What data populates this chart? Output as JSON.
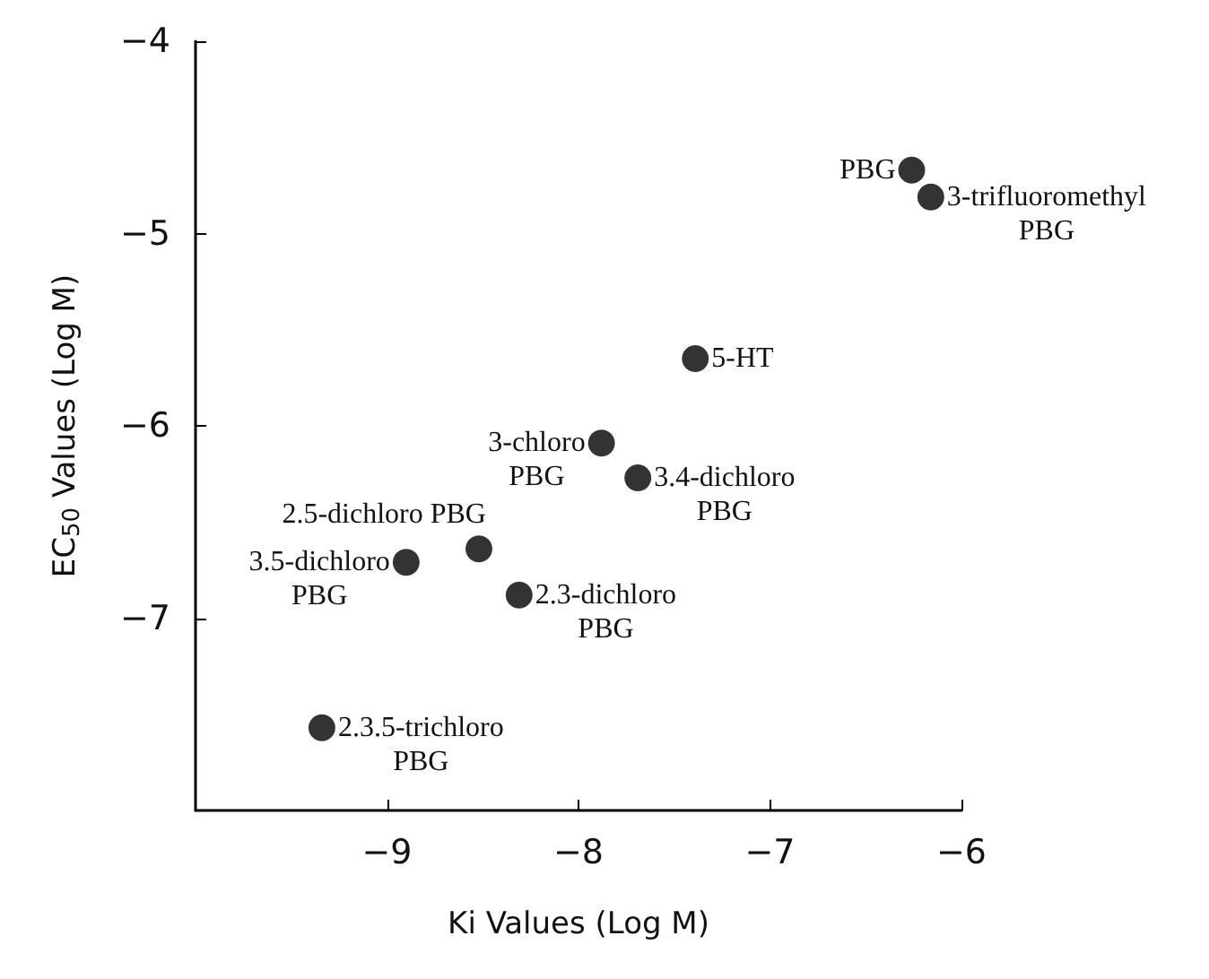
{
  "chart_data": {
    "type": "scatter",
    "xlabel": "Ki Values (Log M)",
    "ylabel": "EC$_{50}$ Values (Log M)",
    "xlim": [
      -10,
      -6
    ],
    "xticks": [
      -9,
      -8,
      -7,
      -6
    ],
    "ylim": [
      -8,
      -4
    ],
    "yticks": [
      -7,
      -6,
      -5,
      -4
    ],
    "grid": false,
    "marker": "circle",
    "x": [
      -6.26,
      -6.16,
      -7.39,
      -7.88,
      -7.69,
      -8.52,
      -8.9,
      -8.31,
      -9.34
    ],
    "series": [
      {
        "color": "#000000",
        "values": [
          -4.67,
          -4.81,
          -5.65,
          -6.09,
          -6.27,
          -6.64,
          -6.71,
          -6.88,
          -7.57
        ]
      }
    ],
    "annotations": [
      {
        "text": "PBG",
        "x": -6.26,
        "y": -4.67
      },
      {
        "text": "3-trifluoromethyl\nPBG",
        "x": -6.16,
        "y": -4.81
      },
      {
        "text": "5-HT",
        "x": -7.39,
        "y": -5.65
      },
      {
        "text": "3-chloro\nPBG",
        "x": -7.88,
        "y": -6.09
      },
      {
        "text": "3.4-dichloro\nPBG",
        "x": -7.69,
        "y": -6.27
      },
      {
        "text": "2.5-dichloro PBG",
        "x": -8.52,
        "y": -6.64
      },
      {
        "text": "3.5-dichloro\nPBG",
        "x": -8.9,
        "y": -6.71
      },
      {
        "text": "2.3-dichloro\nPBG",
        "x": -8.31,
        "y": -6.88
      },
      {
        "text": "2.3.5-trichloro\nPBG",
        "x": -9.34,
        "y": -7.57
      }
    ]
  }
}
